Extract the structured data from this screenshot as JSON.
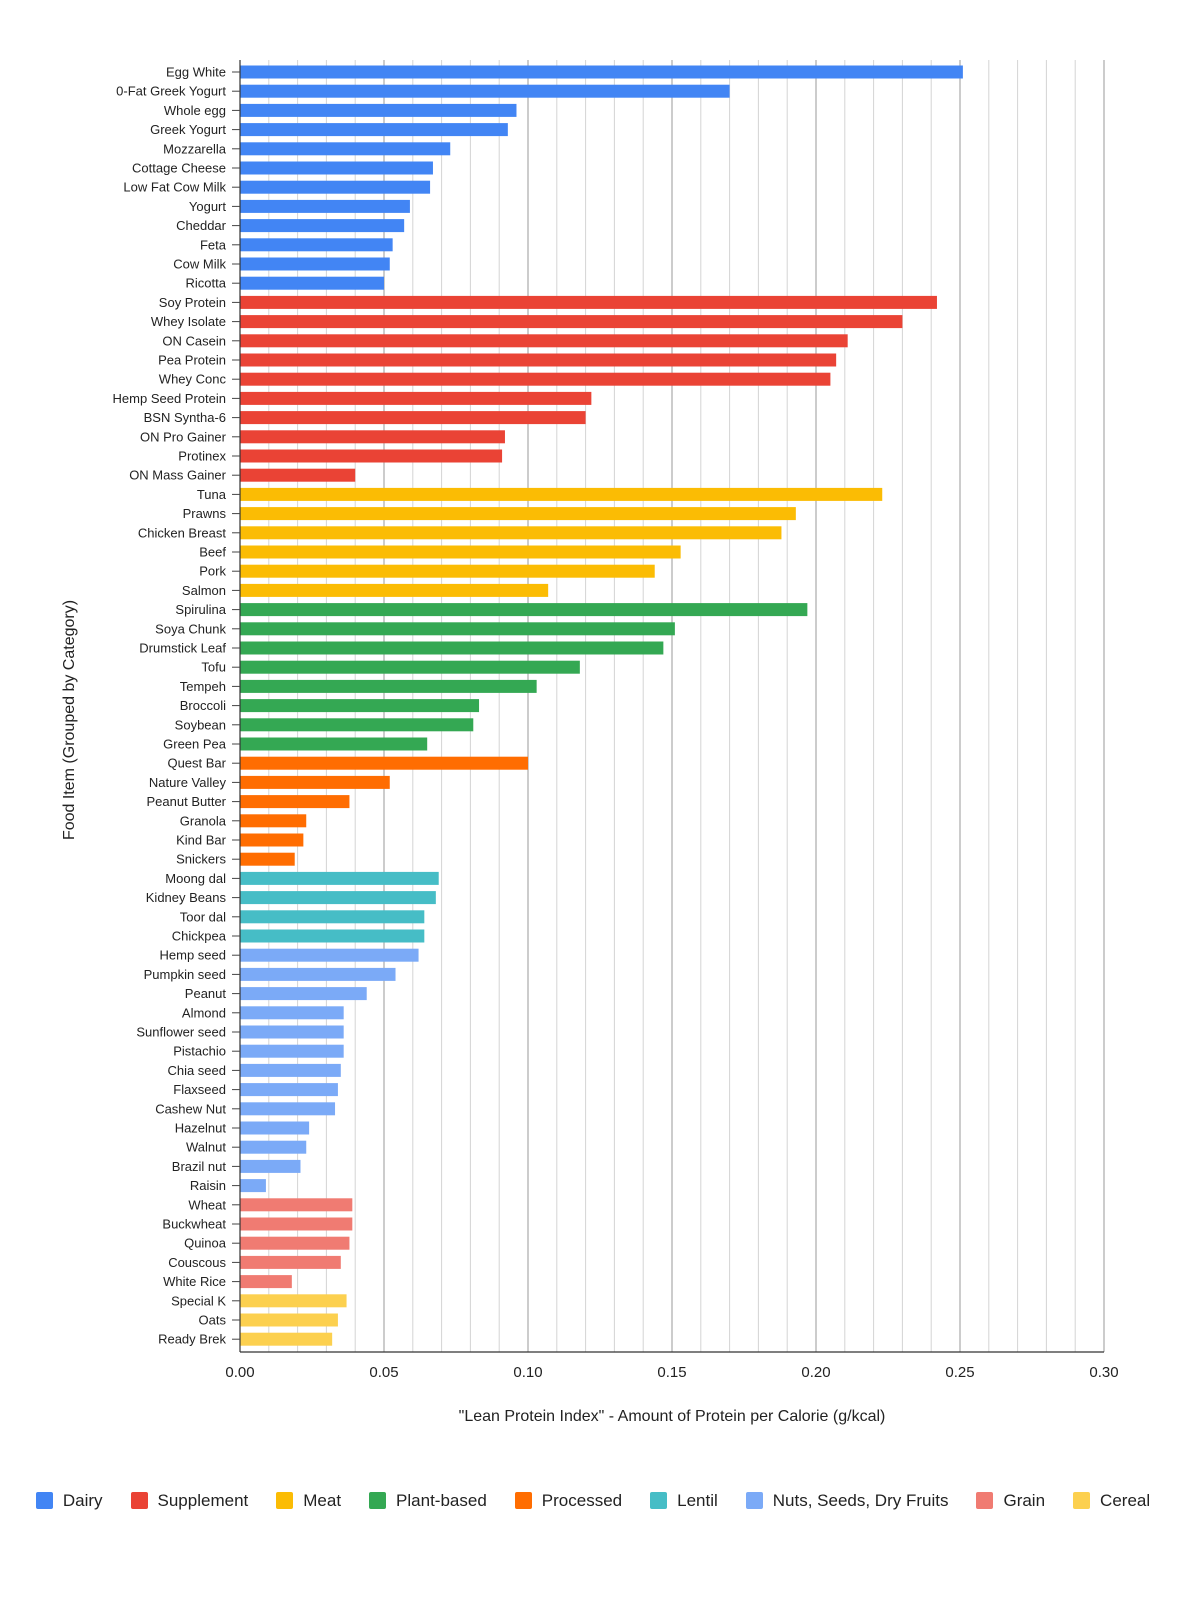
{
  "chart_data": {
    "type": "bar",
    "orientation": "horizontal",
    "xlabel": "\"Lean Protein Index\" - Amount of Protein per Calorie (g/kcal)",
    "ylabel": "Food Item (Grouped by Category)",
    "xlim": [
      0,
      0.3
    ],
    "xticks": [
      "0.00",
      "0.05",
      "0.10",
      "0.15",
      "0.20",
      "0.25",
      "0.30"
    ],
    "grid": true,
    "legend_position": "bottom",
    "categories_legend": [
      {
        "name": "Dairy",
        "color": "#4285F4"
      },
      {
        "name": "Supplement",
        "color": "#EA4335"
      },
      {
        "name": "Meat",
        "color": "#FBBC04"
      },
      {
        "name": "Plant-based",
        "color": "#34A853"
      },
      {
        "name": "Processed",
        "color": "#FF6D01"
      },
      {
        "name": "Lentil",
        "color": "#46BDC6"
      },
      {
        "name": "Nuts, Seeds, Dry Fruits",
        "color": "#7BAAF7"
      },
      {
        "name": "Grain",
        "color": "#F07B72"
      },
      {
        "name": "Cereal",
        "color": "#FCD04F"
      }
    ],
    "items": [
      {
        "label": "Egg White",
        "value": 0.251,
        "category": "Dairy"
      },
      {
        "label": "0-Fat Greek Yogurt",
        "value": 0.17,
        "category": "Dairy"
      },
      {
        "label": "Whole egg",
        "value": 0.096,
        "category": "Dairy"
      },
      {
        "label": "Greek Yogurt",
        "value": 0.093,
        "category": "Dairy"
      },
      {
        "label": "Mozzarella",
        "value": 0.073,
        "category": "Dairy"
      },
      {
        "label": "Cottage Cheese",
        "value": 0.067,
        "category": "Dairy"
      },
      {
        "label": "Low Fat Cow Milk",
        "value": 0.066,
        "category": "Dairy"
      },
      {
        "label": "Yogurt",
        "value": 0.059,
        "category": "Dairy"
      },
      {
        "label": "Cheddar",
        "value": 0.057,
        "category": "Dairy"
      },
      {
        "label": "Feta",
        "value": 0.053,
        "category": "Dairy"
      },
      {
        "label": "Cow Milk",
        "value": 0.052,
        "category": "Dairy"
      },
      {
        "label": "Ricotta",
        "value": 0.05,
        "category": "Dairy"
      },
      {
        "label": "Soy Protein",
        "value": 0.242,
        "category": "Supplement"
      },
      {
        "label": "Whey Isolate",
        "value": 0.23,
        "category": "Supplement"
      },
      {
        "label": "ON Casein",
        "value": 0.211,
        "category": "Supplement"
      },
      {
        "label": "Pea Protein",
        "value": 0.207,
        "category": "Supplement"
      },
      {
        "label": "Whey Conc",
        "value": 0.205,
        "category": "Supplement"
      },
      {
        "label": "Hemp Seed Protein",
        "value": 0.122,
        "category": "Supplement"
      },
      {
        "label": "BSN Syntha-6",
        "value": 0.12,
        "category": "Supplement"
      },
      {
        "label": "ON Pro Gainer",
        "value": 0.092,
        "category": "Supplement"
      },
      {
        "label": "Protinex",
        "value": 0.091,
        "category": "Supplement"
      },
      {
        "label": "ON Mass Gainer",
        "value": 0.04,
        "category": "Supplement"
      },
      {
        "label": "Tuna",
        "value": 0.223,
        "category": "Meat"
      },
      {
        "label": "Prawns",
        "value": 0.193,
        "category": "Meat"
      },
      {
        "label": "Chicken Breast",
        "value": 0.188,
        "category": "Meat"
      },
      {
        "label": "Beef",
        "value": 0.153,
        "category": "Meat"
      },
      {
        "label": "Pork",
        "value": 0.144,
        "category": "Meat"
      },
      {
        "label": "Salmon",
        "value": 0.107,
        "category": "Meat"
      },
      {
        "label": "Spirulina",
        "value": 0.197,
        "category": "Plant-based"
      },
      {
        "label": "Soya Chunk",
        "value": 0.151,
        "category": "Plant-based"
      },
      {
        "label": "Drumstick Leaf",
        "value": 0.147,
        "category": "Plant-based"
      },
      {
        "label": "Tofu",
        "value": 0.118,
        "category": "Plant-based"
      },
      {
        "label": "Tempeh",
        "value": 0.103,
        "category": "Plant-based"
      },
      {
        "label": "Broccoli",
        "value": 0.083,
        "category": "Plant-based"
      },
      {
        "label": "Soybean",
        "value": 0.081,
        "category": "Plant-based"
      },
      {
        "label": "Green Pea",
        "value": 0.065,
        "category": "Plant-based"
      },
      {
        "label": "Quest Bar",
        "value": 0.1,
        "category": "Processed"
      },
      {
        "label": "Nature Valley",
        "value": 0.052,
        "category": "Processed"
      },
      {
        "label": "Peanut Butter",
        "value": 0.038,
        "category": "Processed"
      },
      {
        "label": "Granola",
        "value": 0.023,
        "category": "Processed"
      },
      {
        "label": "Kind Bar",
        "value": 0.022,
        "category": "Processed"
      },
      {
        "label": "Snickers",
        "value": 0.019,
        "category": "Processed"
      },
      {
        "label": "Moong dal",
        "value": 0.069,
        "category": "Lentil"
      },
      {
        "label": "Kidney Beans",
        "value": 0.068,
        "category": "Lentil"
      },
      {
        "label": "Toor dal",
        "value": 0.064,
        "category": "Lentil"
      },
      {
        "label": "Chickpea",
        "value": 0.064,
        "category": "Lentil"
      },
      {
        "label": "Hemp seed",
        "value": 0.062,
        "category": "Nuts, Seeds, Dry Fruits"
      },
      {
        "label": "Pumpkin seed",
        "value": 0.054,
        "category": "Nuts, Seeds, Dry Fruits"
      },
      {
        "label": "Peanut",
        "value": 0.044,
        "category": "Nuts, Seeds, Dry Fruits"
      },
      {
        "label": "Almond",
        "value": 0.036,
        "category": "Nuts, Seeds, Dry Fruits"
      },
      {
        "label": "Sunflower seed",
        "value": 0.036,
        "category": "Nuts, Seeds, Dry Fruits"
      },
      {
        "label": "Pistachio",
        "value": 0.036,
        "category": "Nuts, Seeds, Dry Fruits"
      },
      {
        "label": "Chia seed",
        "value": 0.035,
        "category": "Nuts, Seeds, Dry Fruits"
      },
      {
        "label": "Flaxseed",
        "value": 0.034,
        "category": "Nuts, Seeds, Dry Fruits"
      },
      {
        "label": "Cashew Nut",
        "value": 0.033,
        "category": "Nuts, Seeds, Dry Fruits"
      },
      {
        "label": "Hazelnut",
        "value": 0.024,
        "category": "Nuts, Seeds, Dry Fruits"
      },
      {
        "label": "Walnut",
        "value": 0.023,
        "category": "Nuts, Seeds, Dry Fruits"
      },
      {
        "label": "Brazil nut",
        "value": 0.021,
        "category": "Nuts, Seeds, Dry Fruits"
      },
      {
        "label": "Raisin",
        "value": 0.009,
        "category": "Nuts, Seeds, Dry Fruits"
      },
      {
        "label": "Wheat",
        "value": 0.039,
        "category": "Grain"
      },
      {
        "label": "Buckwheat",
        "value": 0.039,
        "category": "Grain"
      },
      {
        "label": "Quinoa",
        "value": 0.038,
        "category": "Grain"
      },
      {
        "label": "Couscous",
        "value": 0.035,
        "category": "Grain"
      },
      {
        "label": "White Rice",
        "value": 0.018,
        "category": "Grain"
      },
      {
        "label": "Special K",
        "value": 0.037,
        "category": "Cereal"
      },
      {
        "label": "Oats",
        "value": 0.034,
        "category": "Cereal"
      },
      {
        "label": "Ready Brek",
        "value": 0.032,
        "category": "Cereal"
      }
    ]
  }
}
